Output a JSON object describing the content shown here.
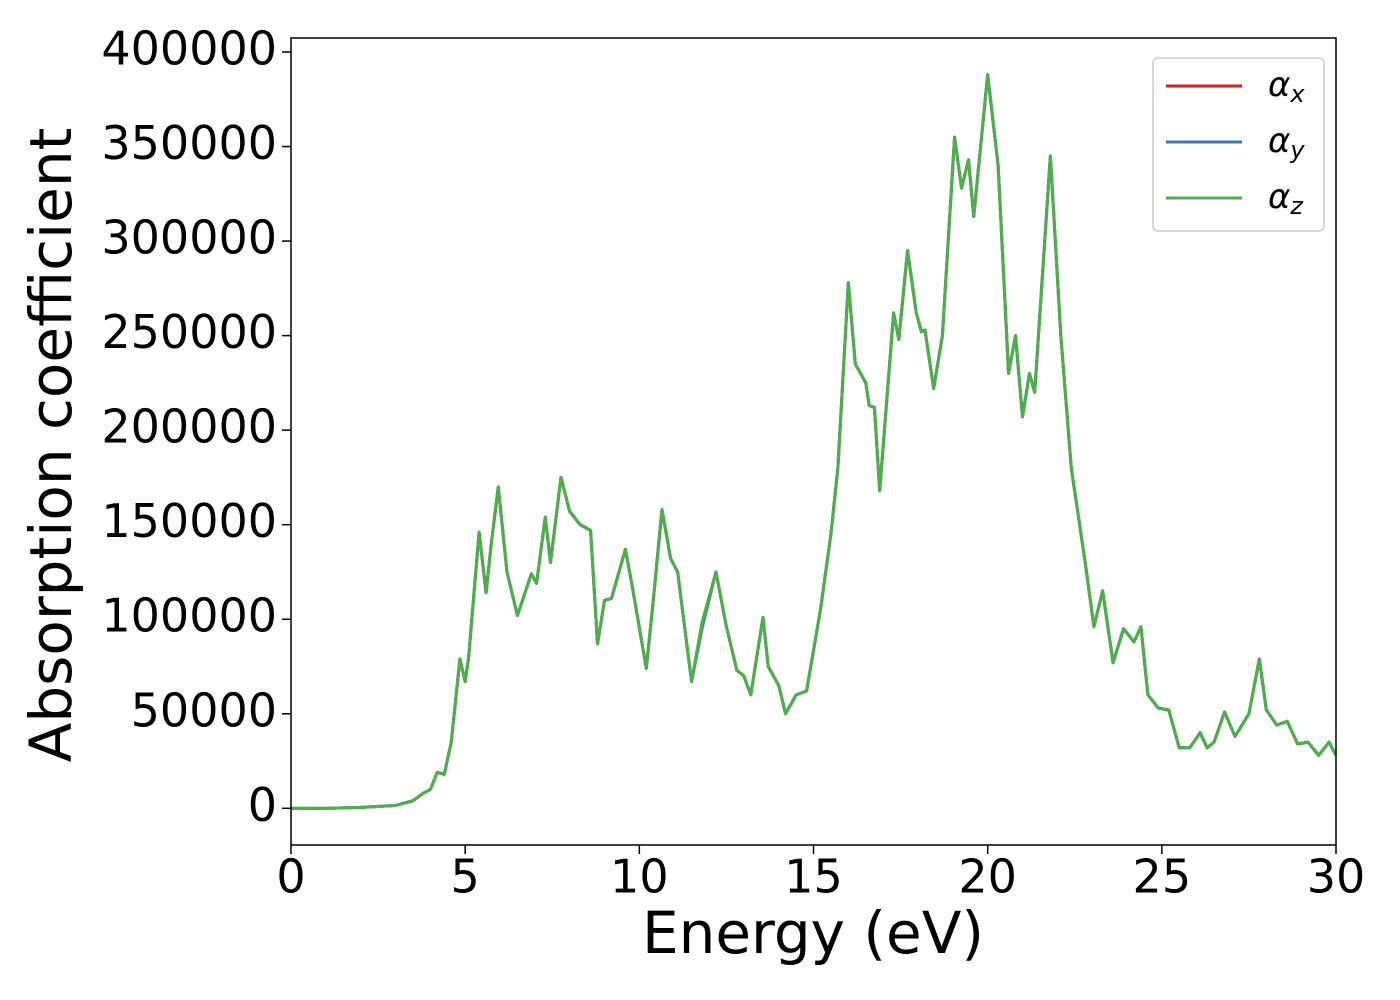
{
  "chart_data": {
    "type": "line",
    "xlabel": "Energy (eV)",
    "ylabel": "Absorption coefficient",
    "x": [
      0,
      1,
      2,
      3,
      3.5,
      3.8,
      4,
      4.2,
      4.4,
      4.6,
      4.85,
      5,
      5.1,
      5.4,
      5.6,
      5.75,
      5.95,
      6.2,
      6.5,
      6.9,
      7.05,
      7.3,
      7.45,
      7.75,
      8,
      8.3,
      8.6,
      8.8,
      9,
      9.2,
      9.6,
      9.8,
      10.2,
      10.4,
      10.65,
      10.9,
      11.1,
      11.5,
      11.8,
      12.2,
      12.5,
      12.8,
      13,
      13.2,
      13.55,
      13.7,
      14,
      14.2,
      14.5,
      14.8,
      15.2,
      15.5,
      15.7,
      16,
      16.2,
      16.5,
      16.6,
      16.75,
      16.9,
      17.3,
      17.45,
      17.7,
      17.95,
      18.1,
      18.2,
      18.45,
      18.7,
      19.05,
      19.25,
      19.45,
      19.6,
      20,
      20.3,
      20.6,
      20.8,
      21,
      21.2,
      21.35,
      21.8,
      22.1,
      22.4,
      22.8,
      23.05,
      23.3,
      23.6,
      23.9,
      24.2,
      24.4,
      24.6,
      24.9,
      25.2,
      25.5,
      25.8,
      26.1,
      26.3,
      26.5,
      26.8,
      27.1,
      27.5,
      27.8,
      28,
      28.3,
      28.6,
      28.9,
      29.2,
      29.5,
      29.8,
      30
    ],
    "series": [
      {
        "name": "αx",
        "color": "#e41a1c",
        "values": [
          0,
          0,
          500,
          1500,
          4000,
          8000,
          10000,
          19000,
          18000,
          35000,
          79000,
          67000,
          80000,
          146000,
          114000,
          140000,
          170000,
          125000,
          102000,
          124000,
          119000,
          154000,
          130000,
          175000,
          157000,
          150000,
          147000,
          87000,
          110000,
          111000,
          137000,
          117000,
          74000,
          110000,
          158000,
          132000,
          125000,
          67000,
          98000,
          125000,
          96000,
          73000,
          70000,
          60000,
          101000,
          75000,
          65000,
          50000,
          60000,
          62000,
          105000,
          145000,
          180000,
          278000,
          235000,
          225000,
          213000,
          212000,
          168000,
          262000,
          248000,
          295000,
          262000,
          252000,
          253000,
          222000,
          250000,
          355000,
          328000,
          343000,
          313000,
          388000,
          340000,
          230000,
          250000,
          207000,
          230000,
          220000,
          345000,
          250000,
          180000,
          130000,
          96000,
          115000,
          77000,
          95000,
          88000,
          96000,
          60000,
          53000,
          52000,
          32000,
          32000,
          40000,
          32000,
          35000,
          51000,
          38000,
          50000,
          79000,
          52000,
          44000,
          46000,
          34000,
          35000,
          28000,
          35000,
          28000
        ]
      },
      {
        "name": "αy",
        "color": "#377eb8",
        "values": [
          0,
          0,
          500,
          1500,
          4000,
          8000,
          10000,
          19000,
          18000,
          35000,
          79000,
          67000,
          80000,
          146000,
          114000,
          140000,
          170000,
          125000,
          102000,
          124000,
          119000,
          154000,
          130000,
          175000,
          157000,
          150000,
          147000,
          87000,
          110000,
          111000,
          137000,
          117000,
          74000,
          110000,
          158000,
          132000,
          125000,
          67000,
          95000,
          125000,
          96000,
          73000,
          70000,
          60000,
          101000,
          75000,
          65000,
          50000,
          60000,
          62000,
          105000,
          145000,
          180000,
          278000,
          235000,
          225000,
          213000,
          212000,
          168000,
          262000,
          248000,
          295000,
          262000,
          252000,
          253000,
          222000,
          250000,
          355000,
          328000,
          343000,
          313000,
          388000,
          340000,
          230000,
          250000,
          207000,
          230000,
          220000,
          345000,
          250000,
          180000,
          130000,
          96000,
          115000,
          77000,
          95000,
          88000,
          96000,
          60000,
          53000,
          52000,
          32000,
          32000,
          40000,
          32000,
          35000,
          51000,
          38000,
          50000,
          79000,
          52000,
          44000,
          46000,
          34000,
          35000,
          28000,
          35000,
          28000
        ]
      },
      {
        "name": "αz",
        "color": "#4daf4a",
        "values": [
          0,
          0,
          500,
          1500,
          4000,
          8000,
          10000,
          19000,
          18000,
          35000,
          79000,
          67000,
          80000,
          146000,
          114000,
          140000,
          170000,
          125000,
          102000,
          124000,
          119000,
          154000,
          130000,
          175000,
          157000,
          150000,
          147000,
          87000,
          110000,
          111000,
          137000,
          117000,
          74000,
          110000,
          158000,
          132000,
          125000,
          67000,
          98000,
          125000,
          96000,
          73000,
          70000,
          60000,
          101000,
          75000,
          65000,
          50000,
          60000,
          62000,
          105000,
          145000,
          180000,
          278000,
          235000,
          225000,
          213000,
          212000,
          168000,
          262000,
          248000,
          295000,
          262000,
          252000,
          253000,
          222000,
          250000,
          355000,
          328000,
          343000,
          313000,
          388000,
          340000,
          230000,
          250000,
          207000,
          230000,
          220000,
          345000,
          250000,
          180000,
          130000,
          96000,
          115000,
          77000,
          95000,
          88000,
          96000,
          60000,
          53000,
          52000,
          32000,
          32000,
          40000,
          32000,
          35000,
          51000,
          38000,
          50000,
          79000,
          52000,
          44000,
          46000,
          34000,
          35000,
          28000,
          35000,
          28000
        ]
      }
    ],
    "xlim": [
      0,
      30
    ],
    "xticks": [
      0,
      5,
      10,
      15,
      20,
      25,
      30
    ],
    "ylim": [
      -19400,
      407400
    ],
    "yticks": [
      0,
      50000,
      100000,
      150000,
      200000,
      250000,
      300000,
      350000,
      400000
    ],
    "grid": false,
    "legend": "upper right"
  }
}
